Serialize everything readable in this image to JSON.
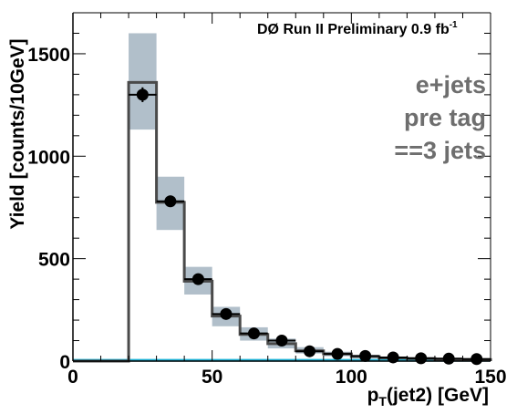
{
  "chart_data": {
    "type": "bar",
    "experiment_label": "DØ Run II Preliminary 0.9 fb",
    "experiment_label_sup": "-1",
    "annotations": [
      "e+jets",
      "pre tag",
      "==3 jets"
    ],
    "xlabel": "p",
    "xlabel_sub": "T",
    "xlabel_rest": "(jet2) [GeV]",
    "ylabel": "Yield [counts/10GeV]",
    "xlim": [
      0,
      150
    ],
    "ylim": [
      0,
      1700
    ],
    "x_ticks": [
      "0",
      "50",
      "100",
      "150"
    ],
    "y_ticks": [
      "0",
      "500",
      "1000",
      "1500"
    ],
    "grid": false,
    "bin_edges": [
      0,
      10,
      20,
      30,
      40,
      50,
      60,
      70,
      80,
      90,
      100,
      110,
      120,
      130,
      140,
      150
    ],
    "series": [
      {
        "kind": "prediction histogram",
        "color": "#4a4a4a",
        "values": [
          0,
          0,
          1360,
          775,
          390,
          220,
          130,
          85,
          50,
          35,
          22,
          15,
          12,
          9,
          7
        ]
      },
      {
        "kind": "uncertainty band",
        "color": "#b1bfca",
        "low": [
          0,
          0,
          1130,
          640,
          325,
          170,
          100,
          62,
          37,
          24,
          15,
          10,
          8,
          6,
          4
        ],
        "high": [
          0,
          0,
          1600,
          900,
          460,
          265,
          165,
          110,
          68,
          46,
          30,
          21,
          16,
          12,
          9
        ]
      },
      {
        "kind": "data points",
        "color": "#000000",
        "x": [
          25,
          35,
          45,
          55,
          65,
          75,
          85,
          95,
          105,
          115,
          125,
          135,
          145
        ],
        "y": [
          1300,
          780,
          400,
          230,
          135,
          100,
          48,
          35,
          25,
          18,
          14,
          12,
          10
        ],
        "yerr": [
          36,
          28,
          20,
          15,
          12,
          10,
          7,
          6,
          5,
          4,
          4,
          3,
          3
        ]
      },
      {
        "kind": "baseline line",
        "color": "#1fb3d6",
        "values": [
          4,
          4,
          4,
          4,
          4,
          4,
          4,
          4,
          4,
          4,
          4,
          4,
          4,
          4,
          4
        ]
      }
    ]
  }
}
